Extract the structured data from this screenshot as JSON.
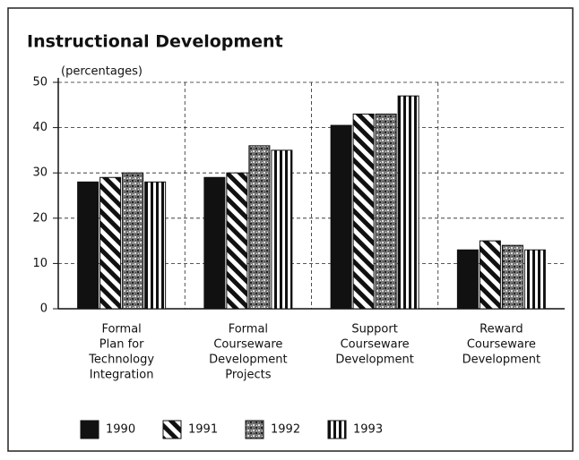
{
  "chart_data": {
    "type": "bar",
    "title": "Instructional Development",
    "y_label": "(percentages)",
    "categories": [
      [
        "Formal",
        "Plan for",
        "Technology",
        "Integration"
      ],
      [
        "Formal",
        "Courseware",
        "Development",
        "Projects"
      ],
      [
        "Support",
        "Courseware",
        "Development"
      ],
      [
        "Reward",
        "Courseware",
        "Development"
      ]
    ],
    "series": [
      {
        "name": "1990",
        "color": "#111111",
        "pattern": "solid",
        "values": [
          28,
          29,
          40.5,
          13
        ]
      },
      {
        "name": "1991",
        "color": "#111111",
        "pattern": "diagonal",
        "values": [
          29,
          30,
          43,
          15
        ]
      },
      {
        "name": "1992",
        "color": "#555555",
        "pattern": "stipple",
        "values": [
          30,
          36,
          43,
          14
        ]
      },
      {
        "name": "1993",
        "color": "#111111",
        "pattern": "vertical",
        "values": [
          28,
          35,
          47,
          13
        ]
      }
    ],
    "ylim": [
      0,
      50
    ],
    "yticks": [
      0,
      10,
      20,
      30,
      40,
      50
    ],
    "grid": true,
    "legend": "bottom"
  }
}
